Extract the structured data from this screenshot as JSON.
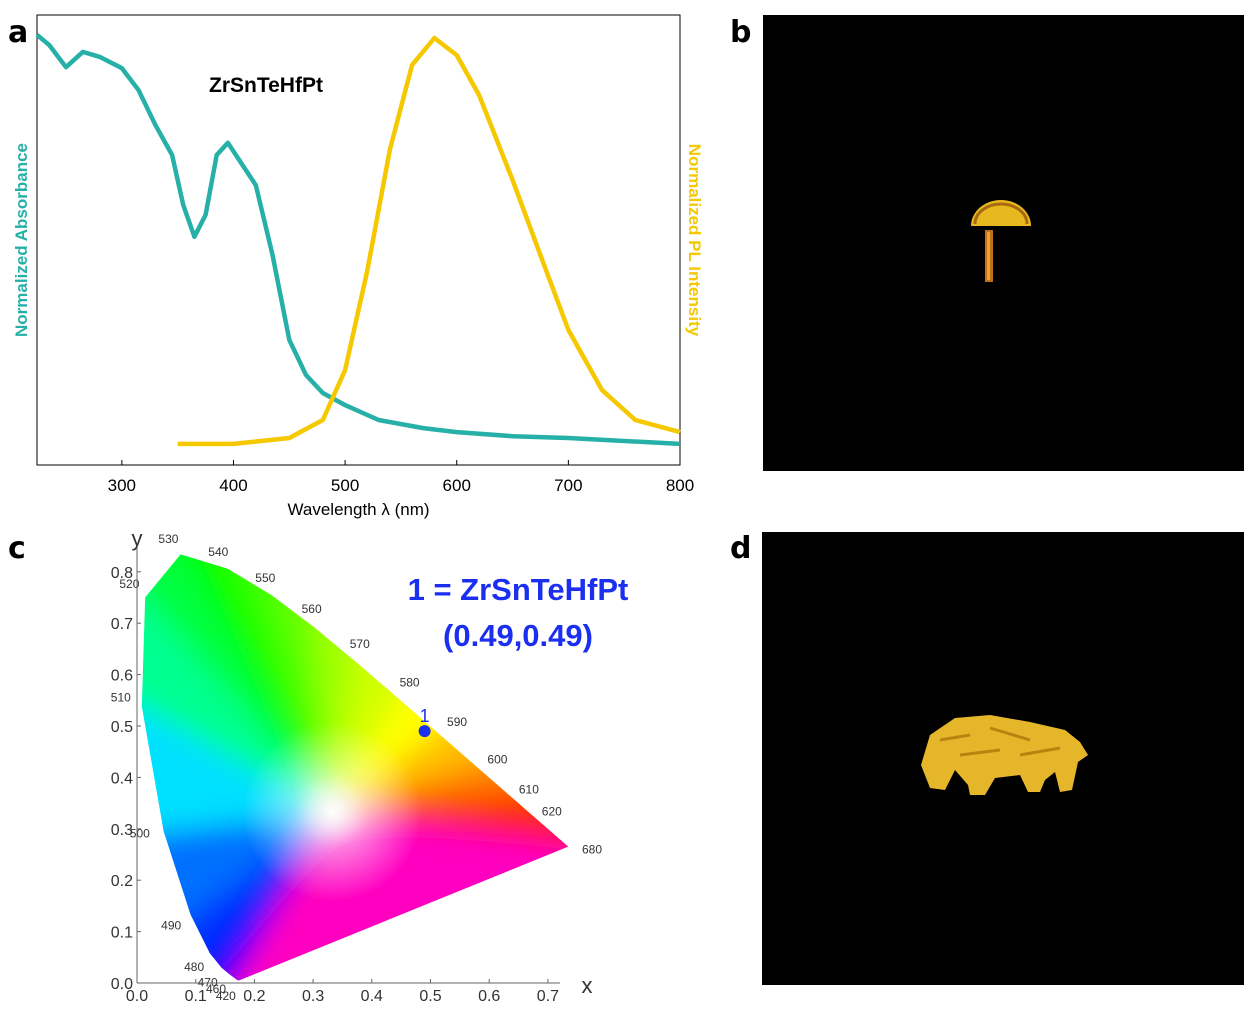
{
  "panel_labels": [
    "a",
    "b",
    "c",
    "d"
  ],
  "chart_data": [
    {
      "type": "line",
      "annotation": "ZrSnTeHfPt",
      "x_label": "Wavelength λ (nm)",
      "y_label": "Normalized Absorbance",
      "y2_label": "Normalized PL Intensity",
      "xlim": [
        224,
        800
      ],
      "xticks": [
        300,
        400,
        500,
        600,
        700,
        800
      ],
      "ylim": [
        0,
        1
      ],
      "series": [
        {
          "name": "Normalized Absorbance",
          "color": "#26b0a8",
          "x": [
            224,
            235,
            250,
            265,
            280,
            300,
            315,
            330,
            345,
            355,
            365,
            375,
            385,
            395,
            405,
            420,
            435,
            450,
            465,
            480,
            500,
            530,
            570,
            600,
            650,
            700,
            800
          ],
          "values": [
            0.956,
            0.933,
            0.884,
            0.918,
            0.907,
            0.882,
            0.833,
            0.756,
            0.689,
            0.578,
            0.507,
            0.556,
            0.689,
            0.716,
            0.678,
            0.622,
            0.467,
            0.278,
            0.2,
            0.16,
            0.133,
            0.1,
            0.082,
            0.073,
            0.064,
            0.06,
            0.047
          ]
        },
        {
          "name": "Normalized PL Intensity",
          "color": "#f5c800",
          "axis": "y2",
          "x": [
            350,
            400,
            450,
            480,
            500,
            520,
            540,
            560,
            580,
            600,
            620,
            650,
            680,
            700,
            730,
            760,
            800
          ],
          "values": [
            0.047,
            0.047,
            0.06,
            0.1,
            0.211,
            0.433,
            0.7,
            0.889,
            0.949,
            0.911,
            0.822,
            0.633,
            0.433,
            0.3,
            0.167,
            0.1,
            0.073
          ]
        }
      ]
    },
    {
      "type": "scatter",
      "x_label": "x",
      "y_label": "y",
      "annotation": "1 = ZrSnTeHfPt",
      "annotation_2": "(0.49,0.49)",
      "xlim": [
        0,
        0.7
      ],
      "xticks": [
        {
          "value": 0,
          "label": "0.0"
        },
        0.1,
        0.2,
        0.3,
        0.4,
        0.5,
        0.6,
        0.7
      ],
      "ylim": [
        0,
        0.8
      ],
      "yticks": [
        {
          "value": 0,
          "label": "0.0"
        },
        0.1,
        0.2,
        0.3,
        0.4,
        0.5,
        0.6,
        0.7,
        0.8
      ],
      "locus_labels": [
        "420",
        "460",
        "470",
        "480",
        "490",
        "500",
        "510",
        "520",
        "530",
        "540",
        "550",
        "560",
        "570",
        "580",
        "590",
        "600",
        "610",
        "620",
        "680"
      ],
      "series": [
        {
          "name": "1",
          "color": "#1a2ff0",
          "x": [
            0.49
          ],
          "values": [
            0.49
          ]
        }
      ]
    }
  ]
}
